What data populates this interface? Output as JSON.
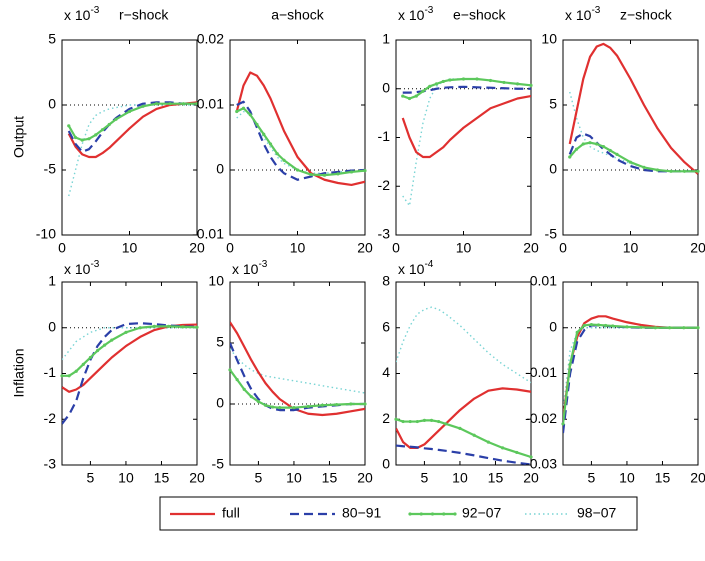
{
  "row_labels": [
    "Output",
    "Inflation"
  ],
  "legend": [
    {
      "name": "full",
      "color": "#e03030",
      "style": "solid"
    },
    {
      "name": "80−91",
      "color": "#2b3fa8",
      "style": "dashed"
    },
    {
      "name": "92−07",
      "color": "#5cc85c",
      "style": "dotmarker"
    },
    {
      "name": "98−07",
      "color": "#78d4d4",
      "style": "dotted"
    }
  ],
  "chart_data": [
    {
      "type": "line",
      "title": "r−shock",
      "multiplier": {
        "base": "x 10",
        "exponent": "-3"
      },
      "x": [
        1,
        2,
        3,
        4,
        5,
        6,
        7,
        8,
        10,
        12,
        14,
        16,
        18,
        20
      ],
      "xlim": [
        0,
        20
      ],
      "xticks": [
        0,
        10,
        20
      ],
      "ylim": [
        -10,
        5
      ],
      "yticks": [
        -10,
        -5,
        0,
        5
      ],
      "zero_line": true,
      "series": [
        {
          "values": [
            -2.2,
            -3.2,
            -3.8,
            -4.0,
            -4.0,
            -3.7,
            -3.3,
            -2.8,
            -1.8,
            -0.9,
            -0.3,
            0,
            0.1,
            0.2
          ]
        },
        {
          "values": [
            -2,
            -3,
            -3.6,
            -3.4,
            -2.8,
            -2.1,
            -1.5,
            -1.0,
            -0.3,
            0.1,
            0.2,
            0.2,
            0.1,
            0.1
          ]
        },
        {
          "values": [
            -1.6,
            -2.5,
            -2.7,
            -2.6,
            -2.3,
            -1.9,
            -1.5,
            -1.1,
            -0.5,
            -0.1,
            0.1,
            0.1,
            0.1,
            0.1
          ]
        },
        {
          "values": [
            -7,
            -5,
            -3,
            -1.5,
            -0.8,
            -0.5,
            -0.3,
            -0.2,
            0,
            0,
            0,
            0,
            0,
            0
          ]
        }
      ]
    },
    {
      "type": "line",
      "title": "a−shock",
      "x": [
        1,
        2,
        3,
        4,
        5,
        6,
        7,
        8,
        10,
        12,
        14,
        16,
        18,
        20
      ],
      "xlim": [
        0,
        20
      ],
      "xticks": [
        0,
        10,
        20
      ],
      "ylim": [
        -0.01,
        0.02
      ],
      "yticks": [
        -0.01,
        0,
        0.01,
        0.02
      ],
      "zero_line": true,
      "series": [
        {
          "values": [
            0.009,
            0.013,
            0.015,
            0.0145,
            0.013,
            0.011,
            0.0085,
            0.006,
            0.002,
            -0.0005,
            -0.0015,
            -0.002,
            -0.0023,
            -0.0018
          ]
        },
        {
          "values": [
            0.01,
            0.0105,
            0.009,
            0.0065,
            0.004,
            0.002,
            0.0005,
            -0.0005,
            -0.0015,
            -0.001,
            -0.0005,
            -0.0003,
            -0.0001,
            0
          ]
        },
        {
          "values": [
            0.009,
            0.0095,
            0.0085,
            0.007,
            0.0055,
            0.004,
            0.0025,
            0.0015,
            0,
            -0.0007,
            -0.0008,
            -0.0006,
            -0.0003,
            -0.0001
          ]
        },
        {
          "values": [
            0.008,
            0.009,
            0.0085,
            0.007,
            0.005,
            0.0035,
            0.002,
            0.001,
            0,
            -0.0005,
            -0.0005,
            -0.0003,
            -0.0002,
            0
          ]
        }
      ]
    },
    {
      "type": "line",
      "title": "e−shock",
      "multiplier": {
        "base": "x 10",
        "exponent": "-3"
      },
      "x": [
        1,
        2,
        3,
        4,
        5,
        6,
        7,
        8,
        10,
        12,
        14,
        16,
        18,
        20
      ],
      "xlim": [
        0,
        20
      ],
      "xticks": [
        0,
        10,
        20
      ],
      "ylim": [
        -3,
        1
      ],
      "yticks": [
        -3,
        -2,
        -1,
        0,
        1
      ],
      "zero_line": true,
      "series": [
        {
          "values": [
            -0.6,
            -1.0,
            -1.3,
            -1.4,
            -1.4,
            -1.3,
            -1.2,
            -1.05,
            -0.8,
            -0.6,
            -0.4,
            -0.3,
            -0.2,
            -0.15
          ]
        },
        {
          "values": [
            -0.08,
            -0.08,
            -0.07,
            -0.05,
            -0.03,
            0,
            0.02,
            0.03,
            0.04,
            0.03,
            0.02,
            0.01,
            0,
            0
          ]
        },
        {
          "values": [
            -0.15,
            -0.2,
            -0.15,
            -0.05,
            0.05,
            0.1,
            0.15,
            0.18,
            0.2,
            0.2,
            0.17,
            0.13,
            0.1,
            0.07
          ]
        },
        {
          "values": [
            -2.2,
            -2.4,
            -1.5,
            -0.7,
            -0.2,
            0.05,
            0.15,
            0.2,
            0.2,
            0.2,
            0.17,
            0.13,
            0.1,
            0.07
          ]
        }
      ]
    },
    {
      "type": "line",
      "title": "z−shock",
      "multiplier": {
        "base": "x 10",
        "exponent": "-3"
      },
      "x": [
        1,
        2,
        3,
        4,
        5,
        6,
        7,
        8,
        10,
        12,
        14,
        16,
        18,
        20
      ],
      "xlim": [
        0,
        20
      ],
      "xticks": [
        0,
        10,
        20
      ],
      "ylim": [
        -5,
        10
      ],
      "yticks": [
        -5,
        0,
        5,
        10
      ],
      "zero_line": true,
      "series": [
        {
          "values": [
            2,
            4.5,
            7,
            8.7,
            9.5,
            9.7,
            9.4,
            8.8,
            7,
            5,
            3.2,
            1.7,
            0.6,
            -0.3
          ]
        },
        {
          "values": [
            1.2,
            2.5,
            2.8,
            2.6,
            2.1,
            1.6,
            1.2,
            0.8,
            0.3,
            0,
            -0.1,
            -0.1,
            -0.1,
            -0.1
          ]
        },
        {
          "values": [
            1.0,
            1.6,
            2.0,
            2.1,
            2.0,
            1.8,
            1.5,
            1.2,
            0.6,
            0.2,
            0,
            -0.1,
            -0.1,
            -0.1
          ]
        },
        {
          "values": [
            6,
            4,
            2.5,
            1.8,
            1.5,
            1.3,
            1.1,
            0.9,
            0.5,
            0.2,
            0,
            -0.1,
            -0.1,
            -0.1
          ]
        }
      ]
    },
    {
      "type": "line",
      "multiplier": {
        "base": "x 10",
        "exponent": "-3"
      },
      "x": [
        1,
        2,
        3,
        4,
        5,
        6,
        7,
        8,
        10,
        12,
        14,
        16,
        18,
        20
      ],
      "xlim": [
        1,
        20
      ],
      "xticks": [
        5,
        10,
        15,
        20
      ],
      "ylim": [
        -3,
        1
      ],
      "yticks": [
        -3,
        -2,
        -1,
        0,
        1
      ],
      "zero_line": true,
      "series": [
        {
          "values": [
            -1.3,
            -1.4,
            -1.35,
            -1.25,
            -1.1,
            -0.95,
            -0.8,
            -0.65,
            -0.4,
            -0.2,
            -0.05,
            0.03,
            0.06,
            0.07
          ]
        },
        {
          "values": [
            -2.1,
            -1.9,
            -1.6,
            -1.1,
            -0.7,
            -0.4,
            -0.2,
            -0.05,
            0.08,
            0.1,
            0.08,
            0.05,
            0.03,
            0.02
          ]
        },
        {
          "values": [
            -1.05,
            -1.05,
            -0.95,
            -0.8,
            -0.65,
            -0.5,
            -0.38,
            -0.27,
            -0.1,
            0,
            0.03,
            0.03,
            0.02,
            0.01
          ]
        },
        {
          "values": [
            -0.7,
            -0.5,
            -0.3,
            -0.2,
            -0.1,
            -0.05,
            0,
            0,
            0,
            0,
            0,
            0,
            0,
            0
          ]
        }
      ]
    },
    {
      "type": "line",
      "multiplier": {
        "base": "x 10",
        "exponent": "-3"
      },
      "x": [
        1,
        2,
        3,
        4,
        5,
        6,
        7,
        8,
        10,
        12,
        14,
        16,
        18,
        20
      ],
      "xlim": [
        1,
        20
      ],
      "xticks": [
        5,
        10,
        15,
        20
      ],
      "ylim": [
        -5,
        10
      ],
      "yticks": [
        -5,
        0,
        5,
        10
      ],
      "zero_line": true,
      "series": [
        {
          "values": [
            6.7,
            5.8,
            4.7,
            3.6,
            2.6,
            1.7,
            1.0,
            0.4,
            -0.4,
            -0.8,
            -0.9,
            -0.8,
            -0.6,
            -0.4
          ]
        },
        {
          "values": [
            5,
            3.6,
            2.3,
            1.2,
            0.4,
            -0.1,
            -0.4,
            -0.5,
            -0.5,
            -0.3,
            -0.2,
            -0.1,
            0,
            0
          ]
        },
        {
          "values": [
            2.8,
            2.0,
            1.2,
            0.6,
            0.2,
            -0.1,
            -0.25,
            -0.3,
            -0.3,
            -0.2,
            -0.1,
            -0.05,
            0,
            0
          ]
        },
        {
          "values": [
            4.5,
            3.8,
            3.2,
            2.8,
            2.5,
            2.3,
            2.2,
            2.1,
            1.9,
            1.7,
            1.5,
            1.3,
            1.1,
            0.9
          ]
        }
      ]
    },
    {
      "type": "line",
      "multiplier": {
        "base": "x 10",
        "exponent": "-4"
      },
      "x": [
        1,
        2,
        3,
        4,
        5,
        6,
        7,
        8,
        10,
        12,
        14,
        16,
        18,
        20
      ],
      "xlim": [
        1,
        20
      ],
      "xticks": [
        5,
        10,
        15,
        20
      ],
      "ylim": [
        0,
        8
      ],
      "yticks": [
        0,
        2,
        4,
        6,
        8
      ],
      "zero_line": false,
      "series": [
        {
          "values": [
            1.6,
            1.0,
            0.75,
            0.75,
            0.9,
            1.2,
            1.5,
            1.8,
            2.4,
            2.9,
            3.25,
            3.35,
            3.3,
            3.2
          ]
        },
        {
          "values": [
            0.85,
            0.82,
            0.8,
            0.77,
            0.73,
            0.7,
            0.66,
            0.62,
            0.53,
            0.42,
            0.3,
            0.19,
            0.1,
            0.02
          ]
        },
        {
          "values": [
            2.0,
            1.9,
            1.9,
            1.9,
            1.95,
            1.95,
            1.9,
            1.8,
            1.6,
            1.3,
            1.0,
            0.75,
            0.55,
            0.35
          ]
        },
        {
          "values": [
            4.5,
            5.4,
            6.1,
            6.6,
            6.8,
            6.9,
            6.8,
            6.6,
            6.1,
            5.5,
            4.9,
            4.4,
            4.0,
            3.6
          ]
        }
      ]
    },
    {
      "type": "line",
      "x": [
        1,
        2,
        3,
        4,
        5,
        6,
        7,
        8,
        10,
        12,
        14,
        16,
        18,
        20
      ],
      "xlim": [
        1,
        20
      ],
      "xticks": [
        5,
        10,
        15,
        20
      ],
      "ylim": [
        -0.03,
        0.01
      ],
      "yticks": [
        -0.03,
        -0.02,
        -0.01,
        0,
        0.01
      ],
      "zero_line": true,
      "series": [
        {
          "values": [
            -0.02,
            -0.008,
            -0.002,
            0.001,
            0.002,
            0.0025,
            0.0025,
            0.002,
            0.0012,
            0.0006,
            0.0002,
            0,
            0,
            0
          ]
        },
        {
          "values": [
            -0.023,
            -0.01,
            -0.003,
            -0.0005,
            0.0005,
            0.0005,
            0.0004,
            0.0003,
            0.0001,
            0,
            0,
            0,
            0,
            0
          ]
        },
        {
          "values": [
            -0.021,
            -0.008,
            -0.001,
            0.0005,
            0.0007,
            0.0006,
            0.0005,
            0.0004,
            0.0002,
            0.0001,
            0,
            0,
            0,
            0
          ]
        },
        {
          "values": [
            -0.018,
            -0.005,
            -0.001,
            0,
            0,
            0,
            0,
            0,
            0,
            0,
            0,
            0,
            0,
            0
          ]
        }
      ]
    }
  ]
}
